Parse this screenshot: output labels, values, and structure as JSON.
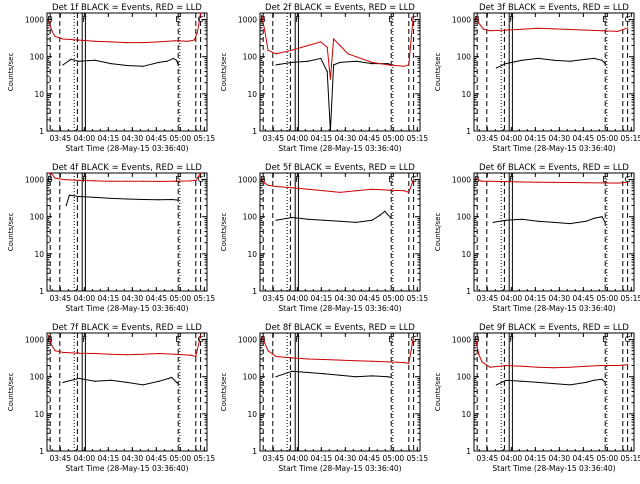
{
  "figure": {
    "subtitle_note": "BLACK = Events, RED = LLD"
  },
  "shared_axes": {
    "xlabel": "Start Time (28-May-15 03:36:40)",
    "ylabel": "Counts/sec",
    "x_ticks": [
      "03:45",
      "04:00",
      "04:15",
      "04:30",
      "04:45",
      "05:00",
      "05:15"
    ],
    "y_ticks": [
      "1",
      "10",
      "100",
      "1000"
    ],
    "xlim_minutes": [
      0,
      100
    ],
    "ylim": [
      1,
      1500
    ]
  },
  "colors": {
    "events": "#000000",
    "lld": "#cc0000",
    "background": "#ffffff"
  },
  "chart_data": [
    {
      "type": "line",
      "title": "Det 1f BLACK = Events, RED = LLD",
      "xlabel": "Start Time (28-May-15 03:36:40)",
      "ylabel": "Counts/sec",
      "markers": [
        {
          "label": "B",
          "x": 2
        },
        {
          "label": "F",
          "x": 24
        },
        {
          "label": "E",
          "x": 82
        },
        {
          "label": "G",
          "x": 96
        }
      ],
      "vlines": {
        "dashed": [
          2,
          8,
          19,
          82,
          93,
          96
        ],
        "dotted": [
          17,
          83
        ],
        "solid": [
          22,
          24
        ]
      },
      "series": [
        {
          "name": "Events",
          "x": [
            10,
            15,
            20,
            30,
            40,
            50,
            60,
            70,
            75,
            79,
            81,
            82
          ],
          "y": [
            60,
            85,
            75,
            80,
            65,
            58,
            55,
            70,
            75,
            90,
            80,
            60
          ]
        },
        {
          "name": "LLD",
          "x": [
            1,
            3,
            5,
            10,
            20,
            30,
            40,
            50,
            60,
            70,
            80,
            88,
            92,
            94,
            96
          ],
          "y": [
            900,
            500,
            350,
            300,
            280,
            260,
            250,
            240,
            240,
            250,
            270,
            260,
            280,
            450,
            1500
          ]
        }
      ]
    },
    {
      "type": "line",
      "title": "Det 2f BLACK = Events, RED = LLD",
      "xlabel": "Start Time (28-May-15 03:36:40)",
      "ylabel": "Counts/sec",
      "markers": [
        {
          "label": "B",
          "x": 2
        },
        {
          "label": "F",
          "x": 24
        },
        {
          "label": "E",
          "x": 82
        },
        {
          "label": "G",
          "x": 96
        }
      ],
      "vlines": {
        "dashed": [
          2,
          8,
          19,
          82,
          93,
          96
        ],
        "dotted": [
          17,
          83
        ],
        "solid": [
          22,
          24
        ]
      },
      "series": [
        {
          "name": "Events",
          "x": [
            10,
            20,
            30,
            38,
            42,
            44,
            46,
            50,
            60,
            70,
            80,
            82
          ],
          "y": [
            60,
            70,
            75,
            90,
            40,
            1,
            60,
            70,
            75,
            65,
            65,
            60
          ]
        },
        {
          "name": "LLD",
          "x": [
            1,
            3,
            5,
            10,
            20,
            30,
            38,
            42,
            44,
            46,
            50,
            55,
            60,
            70,
            80,
            90,
            93,
            96
          ],
          "y": [
            1300,
            500,
            150,
            120,
            150,
            200,
            250,
            180,
            25,
            300,
            200,
            120,
            100,
            70,
            60,
            55,
            60,
            1500
          ]
        }
      ]
    },
    {
      "type": "line",
      "title": "Det 3f BLACK = Events, RED = LLD",
      "xlabel": "Start Time (28-May-15 03:36:40)",
      "ylabel": "Counts/sec",
      "markers": [
        {
          "label": "B",
          "x": 2
        },
        {
          "label": "F",
          "x": 24
        },
        {
          "label": "E",
          "x": 82
        },
        {
          "label": "G",
          "x": 96
        }
      ],
      "vlines": {
        "dashed": [
          2,
          8,
          19,
          82,
          93,
          96
        ],
        "dotted": [
          17,
          83
        ],
        "solid": [
          22,
          24
        ]
      },
      "series": [
        {
          "name": "Events",
          "x": [
            14,
            20,
            30,
            40,
            50,
            60,
            70,
            75,
            80,
            82
          ],
          "y": [
            50,
            65,
            80,
            90,
            80,
            75,
            85,
            90,
            80,
            65
          ]
        },
        {
          "name": "LLD",
          "x": [
            1,
            3,
            6,
            10,
            20,
            30,
            40,
            50,
            60,
            70,
            80,
            90,
            96
          ],
          "y": [
            1200,
            800,
            550,
            500,
            520,
            550,
            580,
            560,
            540,
            520,
            500,
            480,
            600
          ]
        }
      ]
    },
    {
      "type": "line",
      "title": "Det 4f BLACK = Events, RED = LLD",
      "xlabel": "Start Time (28-May-15 03:36:40)",
      "ylabel": "Counts/sec",
      "markers": [
        {
          "label": "B",
          "x": 2
        },
        {
          "label": "F",
          "x": 24
        },
        {
          "label": "E",
          "x": 82
        },
        {
          "label": "G",
          "x": 96
        }
      ],
      "vlines": {
        "dashed": [
          2,
          8,
          19,
          82,
          93,
          96
        ],
        "dotted": [
          17,
          83
        ],
        "solid": [
          22,
          24
        ]
      },
      "series": [
        {
          "name": "Events",
          "x": [
            12,
            14,
            20,
            30,
            40,
            50,
            60,
            70,
            78,
            82
          ],
          "y": [
            200,
            380,
            350,
            330,
            310,
            300,
            290,
            285,
            290,
            280
          ]
        },
        {
          "name": "LLD",
          "x": [
            1,
            3,
            5,
            10,
            20,
            30,
            40,
            50,
            60,
            70,
            80,
            90,
            93,
            96
          ],
          "y": [
            1500,
            1400,
            1100,
            1000,
            950,
            920,
            900,
            900,
            900,
            890,
            900,
            920,
            950,
            1500
          ]
        }
      ]
    },
    {
      "type": "line",
      "title": "Det 5f BLACK = Events, RED = LLD",
      "xlabel": "Start Time (28-May-15 03:36:40)",
      "ylabel": "Counts/sec",
      "markers": [
        {
          "label": "B",
          "x": 2
        },
        {
          "label": "F",
          "x": 24
        },
        {
          "label": "E",
          "x": 82
        },
        {
          "label": "G",
          "x": 96
        }
      ],
      "vlines": {
        "dashed": [
          2,
          8,
          19,
          82,
          93,
          96
        ],
        "dotted": [
          17,
          83
        ],
        "solid": [
          22,
          24
        ]
      },
      "series": [
        {
          "name": "Events",
          "x": [
            10,
            20,
            30,
            40,
            50,
            60,
            70,
            75,
            78,
            82
          ],
          "y": [
            80,
            95,
            85,
            80,
            75,
            70,
            80,
            110,
            140,
            90
          ]
        },
        {
          "name": "LLD",
          "x": [
            1,
            3,
            5,
            10,
            20,
            30,
            40,
            50,
            60,
            70,
            80,
            90,
            93,
            96
          ],
          "y": [
            1000,
            800,
            700,
            650,
            600,
            550,
            500,
            450,
            500,
            550,
            520,
            500,
            450,
            1000
          ]
        }
      ]
    },
    {
      "type": "line",
      "title": "Det 6f BLACK = Events, RED = LLD",
      "xlabel": "Start Time (28-May-15 03:36:40)",
      "ylabel": "Counts/sec",
      "markers": [
        {
          "label": "B",
          "x": 2
        },
        {
          "label": "F",
          "x": 24
        },
        {
          "label": "E",
          "x": 82
        },
        {
          "label": "G",
          "x": 96
        }
      ],
      "vlines": {
        "dashed": [
          2,
          8,
          19,
          82,
          93,
          96
        ],
        "dotted": [
          17,
          83
        ],
        "solid": [
          22,
          24
        ]
      },
      "series": [
        {
          "name": "Events",
          "x": [
            12,
            20,
            30,
            40,
            50,
            60,
            70,
            75,
            80,
            82
          ],
          "y": [
            70,
            80,
            85,
            75,
            70,
            65,
            75,
            90,
            100,
            70
          ]
        },
        {
          "name": "LLD",
          "x": [
            1,
            3,
            5,
            10,
            20,
            30,
            40,
            50,
            60,
            70,
            80,
            90,
            96
          ],
          "y": [
            1100,
            950,
            900,
            900,
            880,
            860,
            850,
            840,
            830,
            820,
            810,
            800,
            850
          ]
        }
      ]
    },
    {
      "type": "line",
      "title": "Det 7f BLACK = Events, RED = LLD",
      "xlabel": "Start Time (28-May-15 03:36:40)",
      "ylabel": "Counts/sec",
      "markers": [
        {
          "label": "B",
          "x": 2
        },
        {
          "label": "F",
          "x": 24
        },
        {
          "label": "E",
          "x": 82
        },
        {
          "label": "G",
          "x": 96
        }
      ],
      "vlines": {
        "dashed": [
          2,
          8,
          19,
          82,
          93,
          96
        ],
        "dotted": [
          17,
          83
        ],
        "solid": [
          22,
          24
        ]
      },
      "series": [
        {
          "name": "Events",
          "x": [
            10,
            20,
            30,
            40,
            50,
            60,
            70,
            78,
            81,
            82
          ],
          "y": [
            70,
            90,
            75,
            80,
            70,
            60,
            75,
            95,
            70,
            65
          ]
        },
        {
          "name": "LLD",
          "x": [
            1,
            3,
            5,
            10,
            20,
            30,
            40,
            50,
            60,
            70,
            80,
            90,
            93,
            96
          ],
          "y": [
            1300,
            700,
            500,
            450,
            430,
            420,
            400,
            390,
            400,
            420,
            400,
            380,
            350,
            1300
          ]
        }
      ]
    },
    {
      "type": "line",
      "title": "Det 8f BLACK = Events, RED = LLD",
      "xlabel": "Start Time (28-May-15 03:36:40)",
      "ylabel": "Counts/sec",
      "markers": [
        {
          "label": "B",
          "x": 2
        },
        {
          "label": "F",
          "x": 24
        },
        {
          "label": "E",
          "x": 82
        },
        {
          "label": "G",
          "x": 96
        }
      ],
      "vlines": {
        "dashed": [
          2,
          8,
          19,
          82,
          93,
          96
        ],
        "dotted": [
          17,
          83
        ],
        "solid": [
          22,
          24
        ]
      },
      "series": [
        {
          "name": "Events",
          "x": [
            10,
            20,
            30,
            40,
            50,
            60,
            70,
            80,
            82
          ],
          "y": [
            100,
            140,
            130,
            120,
            110,
            100,
            105,
            100,
            95
          ]
        },
        {
          "name": "LLD",
          "x": [
            1,
            3,
            5,
            10,
            20,
            30,
            40,
            50,
            60,
            70,
            80,
            90,
            93,
            96
          ],
          "y": [
            1200,
            800,
            500,
            350,
            320,
            300,
            290,
            280,
            270,
            260,
            250,
            240,
            230,
            1200
          ]
        }
      ]
    },
    {
      "type": "line",
      "title": "Det 9f BLACK = Events, RED = LLD",
      "xlabel": "Start Time (28-May-15 03:36:40)",
      "ylabel": "Counts/sec",
      "markers": [
        {
          "label": "B",
          "x": 2
        },
        {
          "label": "F",
          "x": 24
        },
        {
          "label": "E",
          "x": 82
        },
        {
          "label": "G",
          "x": 96
        }
      ],
      "vlines": {
        "dashed": [
          2,
          8,
          19,
          82,
          93,
          96
        ],
        "dotted": [
          17,
          83
        ],
        "solid": [
          22,
          24
        ]
      },
      "series": [
        {
          "name": "Events",
          "x": [
            14,
            20,
            30,
            40,
            50,
            60,
            70,
            75,
            80,
            82
          ],
          "y": [
            60,
            80,
            75,
            70,
            65,
            60,
            70,
            80,
            85,
            70
          ]
        },
        {
          "name": "LLD",
          "x": [
            1,
            3,
            5,
            10,
            20,
            30,
            40,
            50,
            60,
            70,
            80,
            90,
            96
          ],
          "y": [
            1000,
            400,
            250,
            180,
            200,
            190,
            180,
            175,
            180,
            190,
            200,
            200,
            210
          ]
        }
      ]
    }
  ]
}
